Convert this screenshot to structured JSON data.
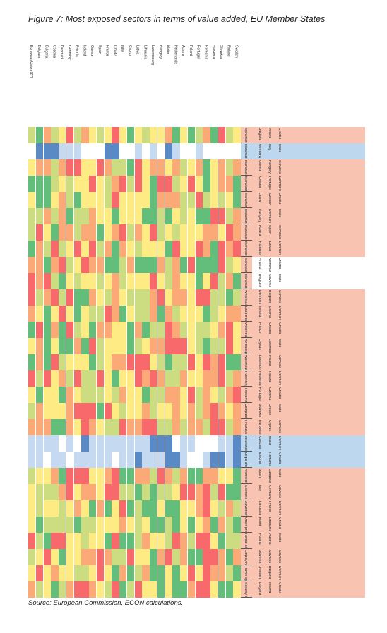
{
  "page": {
    "title": "Figure 7: Most exposed sectors in terms of value added, EU Member States",
    "source": "Source: European Commission, ECON calculations."
  },
  "countries": [
    "European Union (27)",
    "Belgium",
    "Bulgaria",
    "Czechia",
    "Denmark",
    "Germany",
    "Estonia",
    "Ireland",
    "Greece",
    "Spain",
    "France",
    "Croatia",
    "Italy",
    "Cyprus",
    "Latvia",
    "Lithuania",
    "Luxembourg",
    "Hungary",
    "Malta",
    "Netherlands",
    "Austria",
    "Poland",
    "Portugal",
    "Romania",
    "Slovenia",
    "Slovakia",
    "Finland",
    "Sweden"
  ],
  "sectors": [
    "Manufacture of basic pharmaceutical products",
    "Manufacture of chemicals",
    "Manufacture of rubber and plastic products",
    "Manufacture of basic metals",
    "Manufacture of fabricated metal products",
    "Manufacture of computer and electronic products",
    "Manufacture of electrical equipment",
    "Manufacture of machinery",
    "Manufacture of motor vehicles",
    "Manufacture of other transport equipment",
    "Wholesale trade",
    "Land transport",
    "Water transport",
    "Air transport",
    "Warehousing",
    "Publishing activities",
    "Telecommunications",
    "Computer programming",
    "Financial services",
    "Insurance",
    "Legal and accounting",
    "Architectural and engineering",
    "Scientific research",
    "Advertising and market research",
    "Other professional activities",
    "Rental and leasing",
    "Employment activities",
    "Travel agency",
    "Security and investigation"
  ],
  "palette": {
    "red": "#f8696b",
    "orange": "#fbaa77",
    "yellow": "#ffeb84",
    "lightgreen": "#cbdc81",
    "green": "#63be7b",
    "blue": "#5a8ac6",
    "lightblue": "#c5d9f1",
    "white": "#ffffff",
    "panel_salmon": "#f9c3b2",
    "panel_blue": "#bdd7ee"
  }
}
